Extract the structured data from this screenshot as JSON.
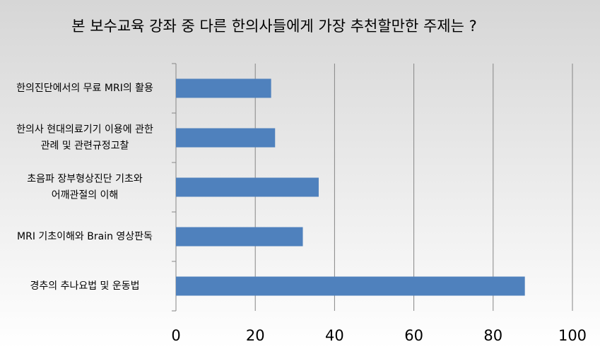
{
  "chart_data": {
    "type": "bar",
    "orientation": "horizontal",
    "title": "본 보수교육 강좌 중 다른 한의사들에게 가장 추천할만한 주제는 ?",
    "categories": [
      [
        "한의진단에서의 무료 MRI의 활용"
      ],
      [
        "한의사 현대의료기기 이용에 관한",
        "관례 및 관련규정고찰"
      ],
      [
        "초음파 장부형상진단 기초와",
        "어깨관절의 이해"
      ],
      [
        "MRI 기초이해와 Brain 영상판독"
      ],
      [
        "경추의 추나요법 및 운동법"
      ]
    ],
    "values": [
      24,
      25,
      36,
      32,
      88
    ],
    "color": "#4f81bd",
    "xlim": [
      0,
      100
    ],
    "xticks": [
      0,
      20,
      40,
      60,
      80,
      100
    ],
    "grid": true
  }
}
